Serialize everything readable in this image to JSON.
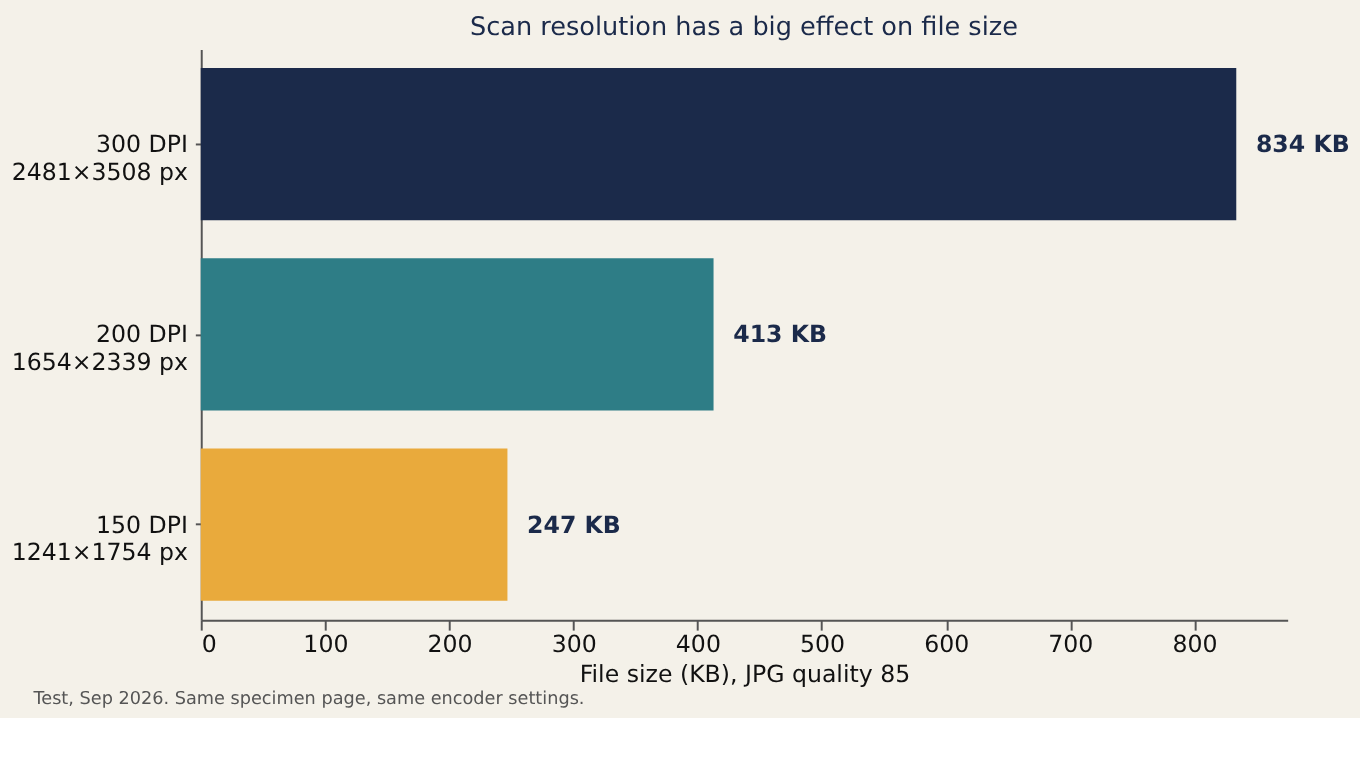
{
  "chart_data": {
    "type": "bar",
    "orientation": "horizontal",
    "title": "Scan resolution has a big effect on file size",
    "xlabel": "File size (KB), JPG quality 85",
    "categories": [
      "300 DPI\n2481×3508 px",
      "200 DPI\n1654×2339 px",
      "150 DPI\n1241×1754 px"
    ],
    "values": [
      834,
      413,
      247
    ],
    "colors": [
      "#1b2a4a",
      "#2e7d86",
      "#e9aa3c"
    ],
    "value_labels": [
      "834 KB",
      "413 KB",
      "247 KB"
    ],
    "xlim": [
      0,
      875
    ],
    "xticks": [
      0,
      100,
      200,
      300,
      400,
      500,
      600,
      700,
      800
    ],
    "grid": false,
    "annotations": [
      "Test, Sep 2026. Same specimen page, same encoder settings."
    ]
  }
}
